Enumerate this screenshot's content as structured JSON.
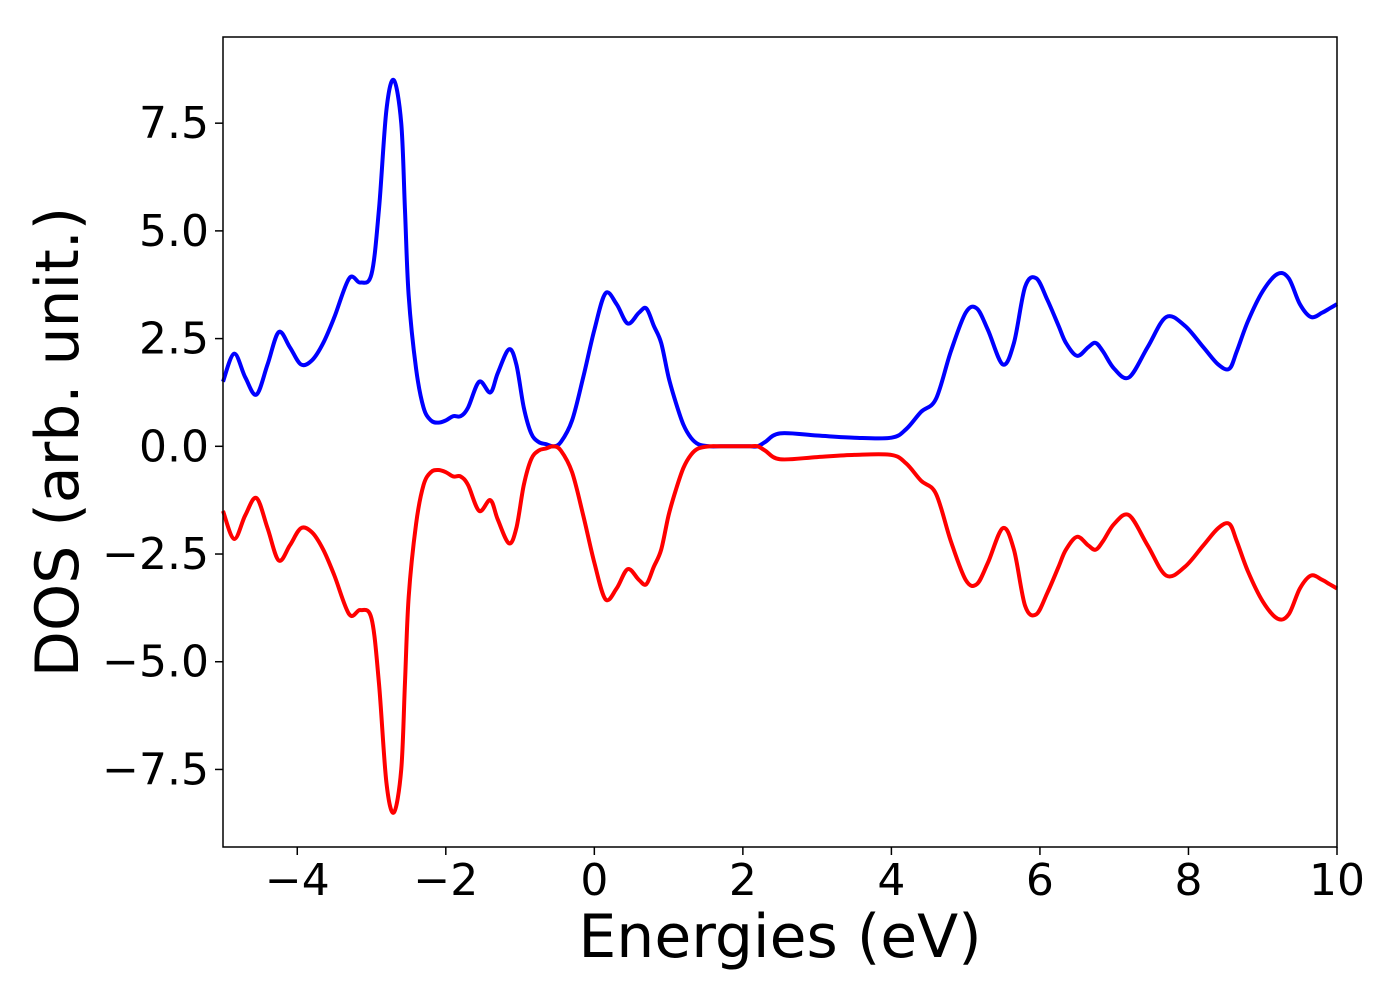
{
  "chart_data": {
    "type": "line",
    "title": "",
    "xlabel": "Energies (eV)",
    "ylabel": "DOS (arb. unit.)",
    "xlim": [
      -5,
      10
    ],
    "ylim": [
      -9.3,
      9.5
    ],
    "grid": false,
    "legend": "none",
    "xticks": [
      -4,
      -2,
      0,
      2,
      4,
      6,
      8,
      10
    ],
    "xtick_labels": [
      "−4",
      "−2",
      "0",
      "2",
      "4",
      "6",
      "8",
      "10"
    ],
    "yticks": [
      -7.5,
      -5.0,
      -2.5,
      0.0,
      2.5,
      5.0,
      7.5
    ],
    "ytick_labels": [
      "−7.5",
      "−5.0",
      "−2.5",
      "0.0",
      "2.5",
      "5.0",
      "7.5"
    ],
    "series": [
      {
        "color": "#0000ff",
        "x": [
          -5.0,
          -4.85,
          -4.7,
          -4.55,
          -4.4,
          -4.25,
          -4.1,
          -3.95,
          -3.8,
          -3.65,
          -3.5,
          -3.3,
          -3.15,
          -3.0,
          -2.9,
          -2.8,
          -2.7,
          -2.6,
          -2.55,
          -2.5,
          -2.4,
          -2.3,
          -2.2,
          -2.1,
          -2.0,
          -1.9,
          -1.8,
          -1.7,
          -1.55,
          -1.4,
          -1.3,
          -1.15,
          -1.05,
          -0.95,
          -0.85,
          -0.75,
          -0.65,
          -0.55,
          -0.45,
          -0.3,
          -0.15,
          0.0,
          0.15,
          0.3,
          0.45,
          0.6,
          0.7,
          0.8,
          0.9,
          1.0,
          1.1,
          1.2,
          1.3,
          1.4,
          1.55,
          1.7,
          1.85,
          2.0,
          2.1,
          2.2,
          2.3,
          2.5,
          3.0,
          3.5,
          4.0,
          4.2,
          4.4,
          4.6,
          4.8,
          5.0,
          5.15,
          5.3,
          5.5,
          5.65,
          5.8,
          5.95,
          6.1,
          6.25,
          6.35,
          6.5,
          6.65,
          6.75,
          6.85,
          7.0,
          7.2,
          7.45,
          7.7,
          7.95,
          8.2,
          8.4,
          8.55,
          8.65,
          8.8,
          9.0,
          9.2,
          9.35,
          9.5,
          9.65,
          9.8,
          9.9,
          10.0
        ],
        "y": [
          1.5,
          2.15,
          1.6,
          1.2,
          1.9,
          2.65,
          2.3,
          1.9,
          2.0,
          2.4,
          3.0,
          3.9,
          3.8,
          4.0,
          5.5,
          7.8,
          8.5,
          7.5,
          5.5,
          3.5,
          1.8,
          0.9,
          0.6,
          0.55,
          0.6,
          0.7,
          0.7,
          0.9,
          1.5,
          1.25,
          1.7,
          2.25,
          1.9,
          0.9,
          0.3,
          0.1,
          0.05,
          0.0,
          0.1,
          0.6,
          1.6,
          2.7,
          3.55,
          3.3,
          2.85,
          3.1,
          3.2,
          2.8,
          2.4,
          1.6,
          1.0,
          0.5,
          0.2,
          0.05,
          0.0,
          0.0,
          0.0,
          0.0,
          0.0,
          0.0,
          0.1,
          0.3,
          0.25,
          0.2,
          0.2,
          0.4,
          0.8,
          1.1,
          2.2,
          3.1,
          3.2,
          2.7,
          1.9,
          2.4,
          3.7,
          3.9,
          3.4,
          2.8,
          2.4,
          2.1,
          2.3,
          2.4,
          2.2,
          1.8,
          1.6,
          2.3,
          3.0,
          2.8,
          2.3,
          1.9,
          1.8,
          2.2,
          2.9,
          3.6,
          4.0,
          3.9,
          3.3,
          3.0,
          3.1,
          3.2,
          3.3
        ]
      },
      {
        "color": "#ff0000",
        "x": [
          -5.0,
          -4.85,
          -4.7,
          -4.55,
          -4.4,
          -4.25,
          -4.1,
          -3.95,
          -3.8,
          -3.65,
          -3.5,
          -3.3,
          -3.15,
          -3.0,
          -2.9,
          -2.8,
          -2.7,
          -2.6,
          -2.55,
          -2.5,
          -2.4,
          -2.3,
          -2.2,
          -2.1,
          -2.0,
          -1.9,
          -1.8,
          -1.7,
          -1.55,
          -1.4,
          -1.3,
          -1.15,
          -1.05,
          -0.95,
          -0.85,
          -0.75,
          -0.65,
          -0.55,
          -0.45,
          -0.3,
          -0.15,
          0.0,
          0.15,
          0.3,
          0.45,
          0.6,
          0.7,
          0.8,
          0.9,
          1.0,
          1.1,
          1.2,
          1.3,
          1.4,
          1.55,
          1.7,
          1.85,
          2.0,
          2.1,
          2.2,
          2.3,
          2.5,
          3.0,
          3.5,
          4.0,
          4.2,
          4.4,
          4.6,
          4.8,
          5.0,
          5.15,
          5.3,
          5.5,
          5.65,
          5.8,
          5.95,
          6.1,
          6.25,
          6.35,
          6.5,
          6.65,
          6.75,
          6.85,
          7.0,
          7.2,
          7.45,
          7.7,
          7.95,
          8.2,
          8.4,
          8.55,
          8.65,
          8.8,
          9.0,
          9.2,
          9.35,
          9.5,
          9.65,
          9.8,
          9.9,
          10.0
        ],
        "y": [
          -1.5,
          -2.15,
          -1.6,
          -1.2,
          -1.9,
          -2.65,
          -2.3,
          -1.9,
          -2.0,
          -2.4,
          -3.0,
          -3.9,
          -3.8,
          -4.0,
          -5.5,
          -7.8,
          -8.5,
          -7.5,
          -5.5,
          -3.5,
          -1.8,
          -0.9,
          -0.6,
          -0.55,
          -0.6,
          -0.7,
          -0.7,
          -0.9,
          -1.5,
          -1.25,
          -1.7,
          -2.25,
          -1.9,
          -0.9,
          -0.3,
          -0.1,
          -0.05,
          0.0,
          -0.1,
          -0.6,
          -1.6,
          -2.7,
          -3.55,
          -3.3,
          -2.85,
          -3.1,
          -3.2,
          -2.8,
          -2.4,
          -1.6,
          -1.0,
          -0.5,
          -0.2,
          -0.05,
          0.0,
          0.0,
          0.0,
          0.0,
          0.0,
          0.0,
          -0.1,
          -0.3,
          -0.25,
          -0.2,
          -0.2,
          -0.4,
          -0.8,
          -1.1,
          -2.2,
          -3.1,
          -3.2,
          -2.7,
          -1.9,
          -2.4,
          -3.7,
          -3.9,
          -3.4,
          -2.8,
          -2.4,
          -2.1,
          -2.3,
          -2.4,
          -2.2,
          -1.8,
          -1.6,
          -2.3,
          -3.0,
          -2.8,
          -2.3,
          -1.9,
          -1.8,
          -2.2,
          -2.9,
          -3.6,
          -4.0,
          -3.9,
          -3.3,
          -3.0,
          -3.1,
          -3.2,
          -3.3
        ]
      }
    ]
  }
}
